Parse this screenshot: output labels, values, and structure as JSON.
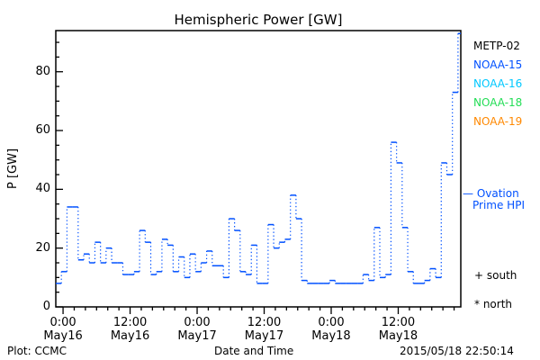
{
  "chart_data": {
    "type": "line",
    "title": "Hemispheric Power [GW]",
    "xlabel": "Date and Time",
    "ylabel": "P [GW]",
    "ylim": [
      0,
      94
    ],
    "xlim_hours": [
      -1.3,
      71.2
    ],
    "yticks": [
      0,
      20,
      40,
      60,
      80
    ],
    "xticks": [
      {
        "hour": 0,
        "time": "0:00",
        "date": "May16"
      },
      {
        "hour": 12,
        "time": "12:00",
        "date": "May16"
      },
      {
        "hour": 24,
        "time": "0:00",
        "date": "May17"
      },
      {
        "hour": 36,
        "time": "12:00",
        "date": "May17"
      },
      {
        "hour": 48,
        "time": "0:00",
        "date": "May18"
      },
      {
        "hour": 60,
        "time": "12:00",
        "date": "May18"
      }
    ],
    "series": [
      {
        "name": "NOAA-15",
        "color": "#0050ff",
        "start_hour": -1.3,
        "step_hours": 1,
        "values": [
          8,
          12,
          34,
          34,
          16,
          18,
          15,
          22,
          15,
          20,
          15,
          15,
          11,
          11,
          12,
          26,
          22,
          11,
          12,
          23,
          21,
          12,
          17,
          10,
          18,
          12,
          15,
          19,
          14,
          14,
          10,
          30,
          26,
          12,
          11,
          21,
          8,
          8,
          28,
          20,
          22,
          23,
          38,
          30,
          9,
          8,
          8,
          8,
          8,
          9,
          8,
          8,
          8,
          8,
          8,
          11,
          9,
          27,
          10,
          11,
          56,
          49,
          27,
          12,
          8,
          8,
          9,
          13,
          10,
          49,
          45,
          73,
          93
        ]
      }
    ],
    "legend": [
      {
        "label": "METP-02",
        "color": "#000000"
      },
      {
        "label": "NOAA-15",
        "color": "#0050ff"
      },
      {
        "label": "NOAA-16",
        "color": "#00c8ff"
      },
      {
        "label": "NOAA-18",
        "color": "#22dd55"
      },
      {
        "label": "NOAA-19",
        "color": "#ff8800"
      }
    ],
    "ovation": {
      "label_1": "— Ovation",
      "label_2": "Prime HPI",
      "value": 39,
      "color": "#0050ff"
    },
    "markers": {
      "south": "+ south",
      "north": "* north"
    }
  },
  "footer": {
    "plot_label": "Plot: CCMC",
    "timestamp": "2015/05/18 22:50:14"
  }
}
